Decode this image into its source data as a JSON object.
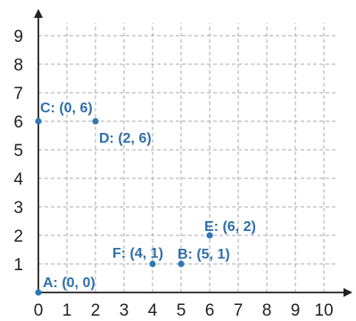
{
  "chart_data": {
    "type": "scatter",
    "title": "",
    "xlabel": "",
    "ylabel": "",
    "xlim": [
      0,
      10
    ],
    "ylim": [
      0,
      9
    ],
    "grid": true,
    "x_ticks": [
      "0",
      "1",
      "2",
      "3",
      "4",
      "5",
      "6",
      "7",
      "8",
      "9",
      "10"
    ],
    "y_ticks": [
      "1",
      "2",
      "3",
      "4",
      "5",
      "6",
      "7",
      "8",
      "9"
    ],
    "point_color": "#2f78b4",
    "label_color": "#2f6fa8",
    "points": [
      {
        "name": "A",
        "label": "A: (0, 0)",
        "x": 0,
        "y": 0
      },
      {
        "name": "B",
        "label": "B: (5, 1)",
        "x": 5,
        "y": 1
      },
      {
        "name": "C",
        "label": "C: (0, 6)",
        "x": 0,
        "y": 6
      },
      {
        "name": "D",
        "label": "D: (2, 6)",
        "x": 2,
        "y": 6
      },
      {
        "name": "E",
        "label": "E: (6, 2)",
        "x": 6,
        "y": 2
      },
      {
        "name": "F",
        "label": "F: (4, 1)",
        "x": 4,
        "y": 1
      }
    ]
  }
}
